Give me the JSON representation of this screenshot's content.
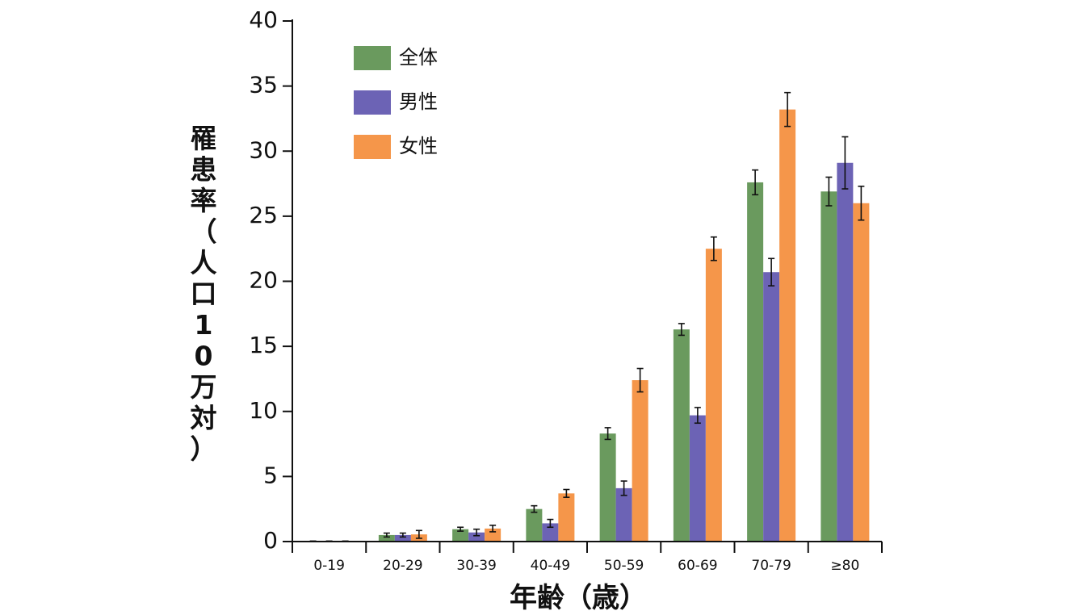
{
  "chart_data": {
    "type": "bar",
    "title": "",
    "xlabel": "年齢（歳）",
    "ylabel": "罹患率（人口10万対）",
    "ylim": [
      0,
      40
    ],
    "yticks": [
      0,
      5,
      10,
      15,
      20,
      25,
      30,
      35,
      40
    ],
    "grid": false,
    "legend_position": "top-left",
    "categories": [
      "0-19",
      "20-29",
      "30-39",
      "40-49",
      "50-59",
      "60-69",
      "70-79",
      "≥80"
    ],
    "series": [
      {
        "name": "全体",
        "color": "#6a9a5e",
        "values": [
          0.02,
          0.5,
          0.95,
          2.5,
          8.3,
          16.3,
          27.6,
          26.9
        ],
        "error": [
          0.02,
          0.15,
          0.15,
          0.25,
          0.45,
          0.45,
          0.95,
          1.1
        ]
      },
      {
        "name": "男性",
        "color": "#6c63b5",
        "values": [
          0.02,
          0.5,
          0.7,
          1.4,
          4.1,
          9.7,
          20.7,
          29.1
        ],
        "error": [
          0.02,
          0.15,
          0.25,
          0.3,
          0.55,
          0.6,
          1.05,
          2.0
        ]
      },
      {
        "name": "女性",
        "color": "#f5964a",
        "values": [
          0.02,
          0.55,
          1.0,
          3.7,
          12.4,
          22.5,
          33.2,
          26.0
        ],
        "error": [
          0.02,
          0.3,
          0.25,
          0.3,
          0.9,
          0.9,
          1.3,
          1.3
        ]
      }
    ]
  }
}
